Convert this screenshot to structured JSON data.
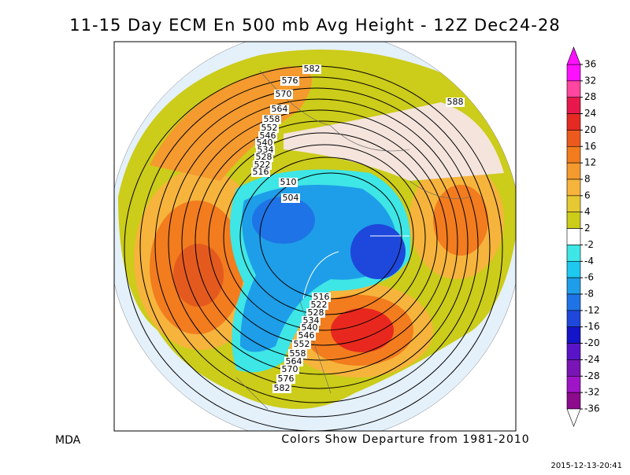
{
  "title": "11-15 Day ECM En 500 mb Avg Height - 12Z Dec24-28",
  "source": "MDA",
  "caption": "Colors Show Departure from 1981-2010",
  "timestamp": "2015-12-13-20:41",
  "colorbar": {
    "levels": [
      36,
      32,
      28,
      24,
      20,
      16,
      12,
      8,
      6,
      4,
      2,
      -2,
      -4,
      -6,
      -8,
      -12,
      -16,
      -20,
      -24,
      -28,
      -32,
      -36
    ],
    "colors": [
      "#ff10ff",
      "#ff46a0",
      "#e8184c",
      "#e42a22",
      "#ec5a1e",
      "#f27c1e",
      "#f59a2e",
      "#f6b43c",
      "#e6c832",
      "#cccc1a",
      "#ffffff",
      "#3ee6e6",
      "#1ec8ee",
      "#1e9ee8",
      "#1e74e6",
      "#1e48dc",
      "#1414c8",
      "#5a14c8",
      "#7a14b4",
      "#a014c8",
      "#8c0a8c"
    ]
  },
  "contours": [
    582,
    576,
    570,
    564,
    558,
    552,
    546,
    540,
    534,
    528,
    522,
    516,
    510,
    504,
    588,
    516,
    522,
    528,
    534,
    540,
    546,
    552,
    558,
    564,
    570,
    576,
    582
  ]
}
